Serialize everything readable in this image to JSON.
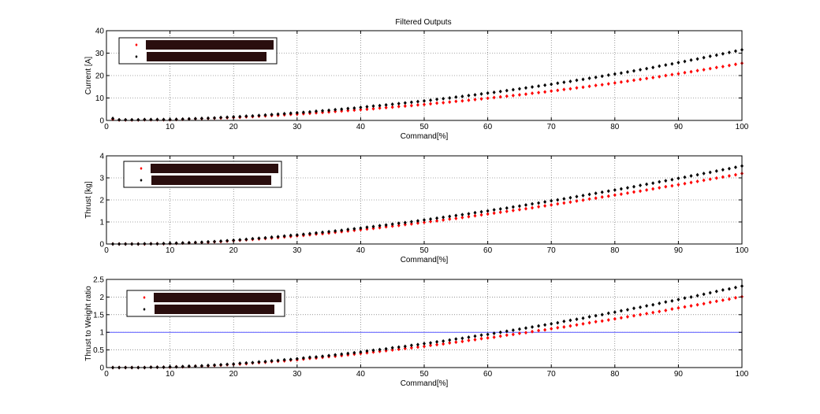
{
  "figure": {
    "title": "Filtered Outputs"
  },
  "chart_data": [
    {
      "type": "scatter",
      "title": "Filtered Outputs",
      "xlabel": "Command[%]",
      "ylabel": "Current [A]",
      "xlim": [
        0,
        100
      ],
      "ylim": [
        0,
        40
      ],
      "xticks": [
        0,
        10,
        20,
        30,
        40,
        50,
        60,
        70,
        80,
        90,
        100
      ],
      "yticks": [
        0,
        10,
        20,
        30,
        40
      ],
      "grid": true,
      "legend_position": "top-left",
      "x": [
        1,
        2,
        3,
        4,
        5,
        6,
        7,
        8,
        9,
        10,
        11,
        12,
        13,
        14,
        15,
        16,
        17,
        18,
        19,
        20,
        21,
        22,
        23,
        24,
        25,
        26,
        27,
        28,
        29,
        30,
        31,
        32,
        33,
        34,
        35,
        36,
        37,
        38,
        39,
        40,
        41,
        42,
        43,
        44,
        45,
        46,
        47,
        48,
        49,
        50,
        51,
        52,
        53,
        54,
        55,
        56,
        57,
        58,
        59,
        60,
        61,
        62,
        63,
        64,
        65,
        66,
        67,
        68,
        69,
        70,
        71,
        72,
        73,
        74,
        75,
        76,
        77,
        78,
        79,
        80,
        81,
        82,
        83,
        84,
        85,
        86,
        87,
        88,
        89,
        90,
        91,
        92,
        93,
        94,
        95,
        96,
        97,
        98,
        99,
        100
      ],
      "series": [
        {
          "color": "#ff0000",
          "values": [
            0.5,
            0.2,
            0.2,
            0.2,
            0.2,
            0.3,
            0.3,
            0.3,
            0.3,
            0.3,
            0.4,
            0.5,
            0.6,
            0.7,
            0.8,
            0.9,
            1.0,
            1.1,
            1.2,
            1.3,
            1.4,
            1.6,
            1.7,
            1.9,
            2.0,
            2.2,
            2.3,
            2.5,
            2.7,
            2.8,
            3.0,
            3.2,
            3.4,
            3.6,
            3.8,
            4.0,
            4.2,
            4.4,
            4.6,
            4.8,
            5.0,
            5.2,
            5.5,
            5.7,
            5.9,
            6.2,
            6.4,
            6.6,
            6.9,
            7.1,
            7.4,
            7.7,
            7.9,
            8.2,
            8.5,
            8.7,
            9.0,
            9.3,
            9.6,
            9.9,
            10.2,
            10.5,
            10.8,
            11.1,
            11.4,
            11.7,
            12.1,
            12.4,
            12.7,
            13.1,
            13.4,
            13.8,
            14.1,
            14.5,
            14.8,
            15.2,
            15.6,
            15.9,
            16.3,
            16.7,
            17.1,
            17.5,
            17.9,
            18.3,
            18.7,
            19.1,
            19.5,
            20.0,
            20.4,
            20.8,
            21.3,
            21.7,
            22.2,
            22.6,
            23.1,
            23.6,
            24.0,
            24.5,
            25.0,
            25.5
          ]
        },
        {
          "color": "#000000",
          "values": [
            0.9,
            0.3,
            0.3,
            0.3,
            0.3,
            0.4,
            0.4,
            0.4,
            0.4,
            0.4,
            0.5,
            0.6,
            0.7,
            0.8,
            0.9,
            1.0,
            1.1,
            1.3,
            1.4,
            1.6,
            1.7,
            1.9,
            2.0,
            2.2,
            2.4,
            2.6,
            2.8,
            3.0,
            3.2,
            3.4,
            3.6,
            3.8,
            4.1,
            4.3,
            4.5,
            4.8,
            5.0,
            5.3,
            5.5,
            5.8,
            6.1,
            6.4,
            6.6,
            6.9,
            7.2,
            7.5,
            7.8,
            8.1,
            8.4,
            8.7,
            9.0,
            9.4,
            9.7,
            10.0,
            10.4,
            10.7,
            11.1,
            11.4,
            11.8,
            12.2,
            12.5,
            12.9,
            13.3,
            13.7,
            14.1,
            14.5,
            14.9,
            15.3,
            15.7,
            16.1,
            16.6,
            17.0,
            17.4,
            17.9,
            18.3,
            18.8,
            19.2,
            19.7,
            20.2,
            20.7,
            21.1,
            21.6,
            22.1,
            22.6,
            23.1,
            23.6,
            24.2,
            24.7,
            25.2,
            25.8,
            26.3,
            26.9,
            27.4,
            28.0,
            28.6,
            29.1,
            29.7,
            30.3,
            30.9,
            31.5
          ]
        }
      ]
    },
    {
      "type": "scatter",
      "xlabel": "Command[%]",
      "ylabel": "Thrust [kg]",
      "xlim": [
        0,
        100
      ],
      "ylim": [
        0,
        4
      ],
      "xticks": [
        0,
        10,
        20,
        30,
        40,
        50,
        60,
        70,
        80,
        90,
        100
      ],
      "yticks": [
        0,
        1,
        2,
        3,
        4
      ],
      "grid": true,
      "legend_position": "top-left",
      "x": [
        1,
        2,
        3,
        4,
        5,
        6,
        7,
        8,
        9,
        10,
        11,
        12,
        13,
        14,
        15,
        16,
        17,
        18,
        19,
        20,
        21,
        22,
        23,
        24,
        25,
        26,
        27,
        28,
        29,
        30,
        31,
        32,
        33,
        34,
        35,
        36,
        37,
        38,
        39,
        40,
        41,
        42,
        43,
        44,
        45,
        46,
        47,
        48,
        49,
        50,
        51,
        52,
        53,
        54,
        55,
        56,
        57,
        58,
        59,
        60,
        61,
        62,
        63,
        64,
        65,
        66,
        67,
        68,
        69,
        70,
        71,
        72,
        73,
        74,
        75,
        76,
        77,
        78,
        79,
        80,
        81,
        82,
        83,
        84,
        85,
        86,
        87,
        88,
        89,
        90,
        91,
        92,
        93,
        94,
        95,
        96,
        97,
        98,
        99,
        100
      ],
      "series": [
        {
          "color": "#ff0000",
          "values": [
            0.0,
            0.0,
            0.0,
            0.0,
            0.0,
            0.0,
            0.01,
            0.01,
            0.01,
            0.02,
            0.03,
            0.04,
            0.05,
            0.06,
            0.07,
            0.08,
            0.1,
            0.11,
            0.13,
            0.15,
            0.17,
            0.19,
            0.21,
            0.23,
            0.25,
            0.27,
            0.29,
            0.32,
            0.34,
            0.37,
            0.39,
            0.42,
            0.45,
            0.47,
            0.5,
            0.53,
            0.56,
            0.59,
            0.62,
            0.65,
            0.68,
            0.71,
            0.74,
            0.78,
            0.81,
            0.84,
            0.88,
            0.91,
            0.95,
            0.98,
            1.02,
            1.05,
            1.09,
            1.13,
            1.16,
            1.2,
            1.24,
            1.28,
            1.32,
            1.36,
            1.4,
            1.44,
            1.48,
            1.52,
            1.56,
            1.6,
            1.64,
            1.69,
            1.73,
            1.77,
            1.82,
            1.86,
            1.9,
            1.95,
            1.99,
            2.04,
            2.08,
            2.13,
            2.17,
            2.22,
            2.26,
            2.31,
            2.36,
            2.4,
            2.45,
            2.5,
            2.55,
            2.6,
            2.64,
            2.69,
            2.74,
            2.79,
            2.84,
            2.89,
            2.94,
            2.99,
            3.04,
            3.09,
            3.14,
            3.2
          ]
        },
        {
          "color": "#000000",
          "values": [
            0.0,
            0.0,
            0.0,
            0.0,
            0.0,
            0.01,
            0.01,
            0.01,
            0.02,
            0.03,
            0.04,
            0.05,
            0.06,
            0.07,
            0.08,
            0.1,
            0.11,
            0.13,
            0.15,
            0.17,
            0.19,
            0.21,
            0.24,
            0.26,
            0.28,
            0.31,
            0.33,
            0.36,
            0.39,
            0.41,
            0.44,
            0.47,
            0.5,
            0.53,
            0.56,
            0.59,
            0.62,
            0.66,
            0.69,
            0.72,
            0.76,
            0.79,
            0.83,
            0.86,
            0.9,
            0.94,
            0.97,
            1.01,
            1.05,
            1.09,
            1.13,
            1.17,
            1.21,
            1.25,
            1.29,
            1.33,
            1.37,
            1.42,
            1.46,
            1.5,
            1.55,
            1.59,
            1.63,
            1.68,
            1.72,
            1.77,
            1.82,
            1.86,
            1.91,
            1.96,
            2.0,
            2.05,
            2.1,
            2.15,
            2.2,
            2.25,
            2.3,
            2.35,
            2.4,
            2.45,
            2.5,
            2.55,
            2.6,
            2.66,
            2.71,
            2.76,
            2.82,
            2.87,
            2.92,
            2.98,
            3.03,
            3.09,
            3.14,
            3.2,
            3.25,
            3.31,
            3.37,
            3.42,
            3.48,
            3.54
          ]
        }
      ]
    },
    {
      "type": "scatter",
      "xlabel": "Command[%]",
      "ylabel": "Thrust to Weight ratio",
      "xlim": [
        0,
        100
      ],
      "ylim": [
        0,
        2.5
      ],
      "xticks": [
        0,
        10,
        20,
        30,
        40,
        50,
        60,
        70,
        80,
        90,
        100
      ],
      "yticks": [
        0,
        0.5,
        1,
        1.5,
        2,
        2.5
      ],
      "grid": true,
      "legend_position": "top-left",
      "reference_line": {
        "y": 1,
        "color": "#5555ff"
      },
      "x": [
        1,
        2,
        3,
        4,
        5,
        6,
        7,
        8,
        9,
        10,
        11,
        12,
        13,
        14,
        15,
        16,
        17,
        18,
        19,
        20,
        21,
        22,
        23,
        24,
        25,
        26,
        27,
        28,
        29,
        30,
        31,
        32,
        33,
        34,
        35,
        36,
        37,
        38,
        39,
        40,
        41,
        42,
        43,
        44,
        45,
        46,
        47,
        48,
        49,
        50,
        51,
        52,
        53,
        54,
        55,
        56,
        57,
        58,
        59,
        60,
        61,
        62,
        63,
        64,
        65,
        66,
        67,
        68,
        69,
        70,
        71,
        72,
        73,
        74,
        75,
        76,
        77,
        78,
        79,
        80,
        81,
        82,
        83,
        84,
        85,
        86,
        87,
        88,
        89,
        90,
        91,
        92,
        93,
        94,
        95,
        96,
        97,
        98,
        99,
        100
      ],
      "series": [
        {
          "color": "#ff0000",
          "values": [
            0.0,
            0.0,
            0.0,
            0.0,
            0.0,
            0.0,
            0.01,
            0.01,
            0.01,
            0.01,
            0.02,
            0.02,
            0.03,
            0.04,
            0.04,
            0.05,
            0.06,
            0.07,
            0.08,
            0.09,
            0.1,
            0.11,
            0.13,
            0.14,
            0.15,
            0.17,
            0.18,
            0.19,
            0.21,
            0.22,
            0.24,
            0.26,
            0.27,
            0.29,
            0.31,
            0.32,
            0.34,
            0.36,
            0.38,
            0.4,
            0.42,
            0.44,
            0.46,
            0.48,
            0.5,
            0.52,
            0.54,
            0.56,
            0.58,
            0.6,
            0.63,
            0.65,
            0.67,
            0.7,
            0.72,
            0.74,
            0.77,
            0.79,
            0.82,
            0.84,
            0.86,
            0.89,
            0.92,
            0.94,
            0.97,
            0.99,
            1.02,
            1.05,
            1.07,
            1.1,
            1.13,
            1.15,
            1.18,
            1.21,
            1.24,
            1.27,
            1.3,
            1.32,
            1.35,
            1.38,
            1.41,
            1.44,
            1.47,
            1.5,
            1.53,
            1.56,
            1.59,
            1.62,
            1.66,
            1.69,
            1.72,
            1.75,
            1.78,
            1.81,
            1.85,
            1.88,
            1.91,
            1.94,
            1.98,
            2.01
          ]
        },
        {
          "color": "#000000",
          "values": [
            0.0,
            0.0,
            0.0,
            0.0,
            0.0,
            0.0,
            0.01,
            0.01,
            0.01,
            0.02,
            0.02,
            0.03,
            0.04,
            0.04,
            0.05,
            0.06,
            0.07,
            0.08,
            0.09,
            0.1,
            0.12,
            0.13,
            0.14,
            0.16,
            0.17,
            0.19,
            0.2,
            0.22,
            0.23,
            0.25,
            0.27,
            0.29,
            0.3,
            0.32,
            0.34,
            0.36,
            0.38,
            0.4,
            0.42,
            0.44,
            0.47,
            0.49,
            0.51,
            0.53,
            0.56,
            0.58,
            0.6,
            0.63,
            0.65,
            0.68,
            0.7,
            0.73,
            0.75,
            0.78,
            0.81,
            0.83,
            0.86,
            0.89,
            0.92,
            0.94,
            0.97,
            1.0,
            1.03,
            1.06,
            1.09,
            1.12,
            1.15,
            1.18,
            1.21,
            1.24,
            1.27,
            1.31,
            1.34,
            1.37,
            1.4,
            1.44,
            1.47,
            1.5,
            1.54,
            1.57,
            1.61,
            1.64,
            1.68,
            1.71,
            1.75,
            1.78,
            1.82,
            1.86,
            1.89,
            1.93,
            1.97,
            2.0,
            2.04,
            2.08,
            2.12,
            2.16,
            2.2,
            2.23,
            2.27,
            2.31
          ]
        }
      ]
    }
  ]
}
